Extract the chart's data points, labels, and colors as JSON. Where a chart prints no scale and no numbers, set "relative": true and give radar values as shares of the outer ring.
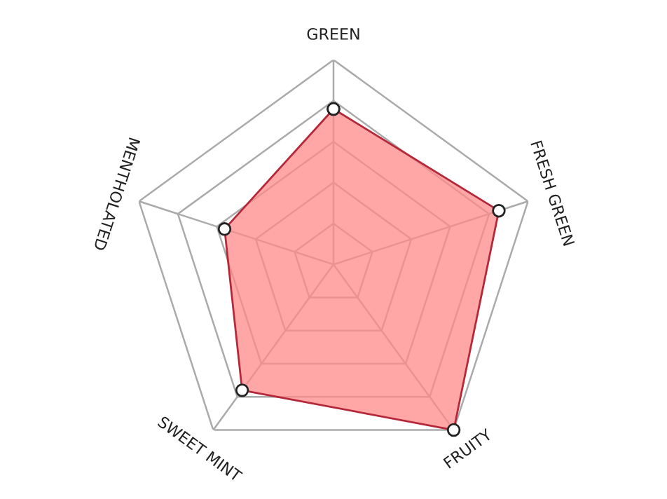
{
  "chart_data": {
    "type": "radar",
    "relative": true,
    "categories": [
      "GREEN",
      "FRESH GREEN",
      "FRUITY",
      "SWEET MINT",
      "MENTHOLATED"
    ],
    "series": [
      {
        "color": "#b5283a",
        "values": [
          0.76,
          0.85,
          1.0,
          0.76,
          0.56
        ]
      }
    ],
    "marker": "circle",
    "grid": true
  }
}
